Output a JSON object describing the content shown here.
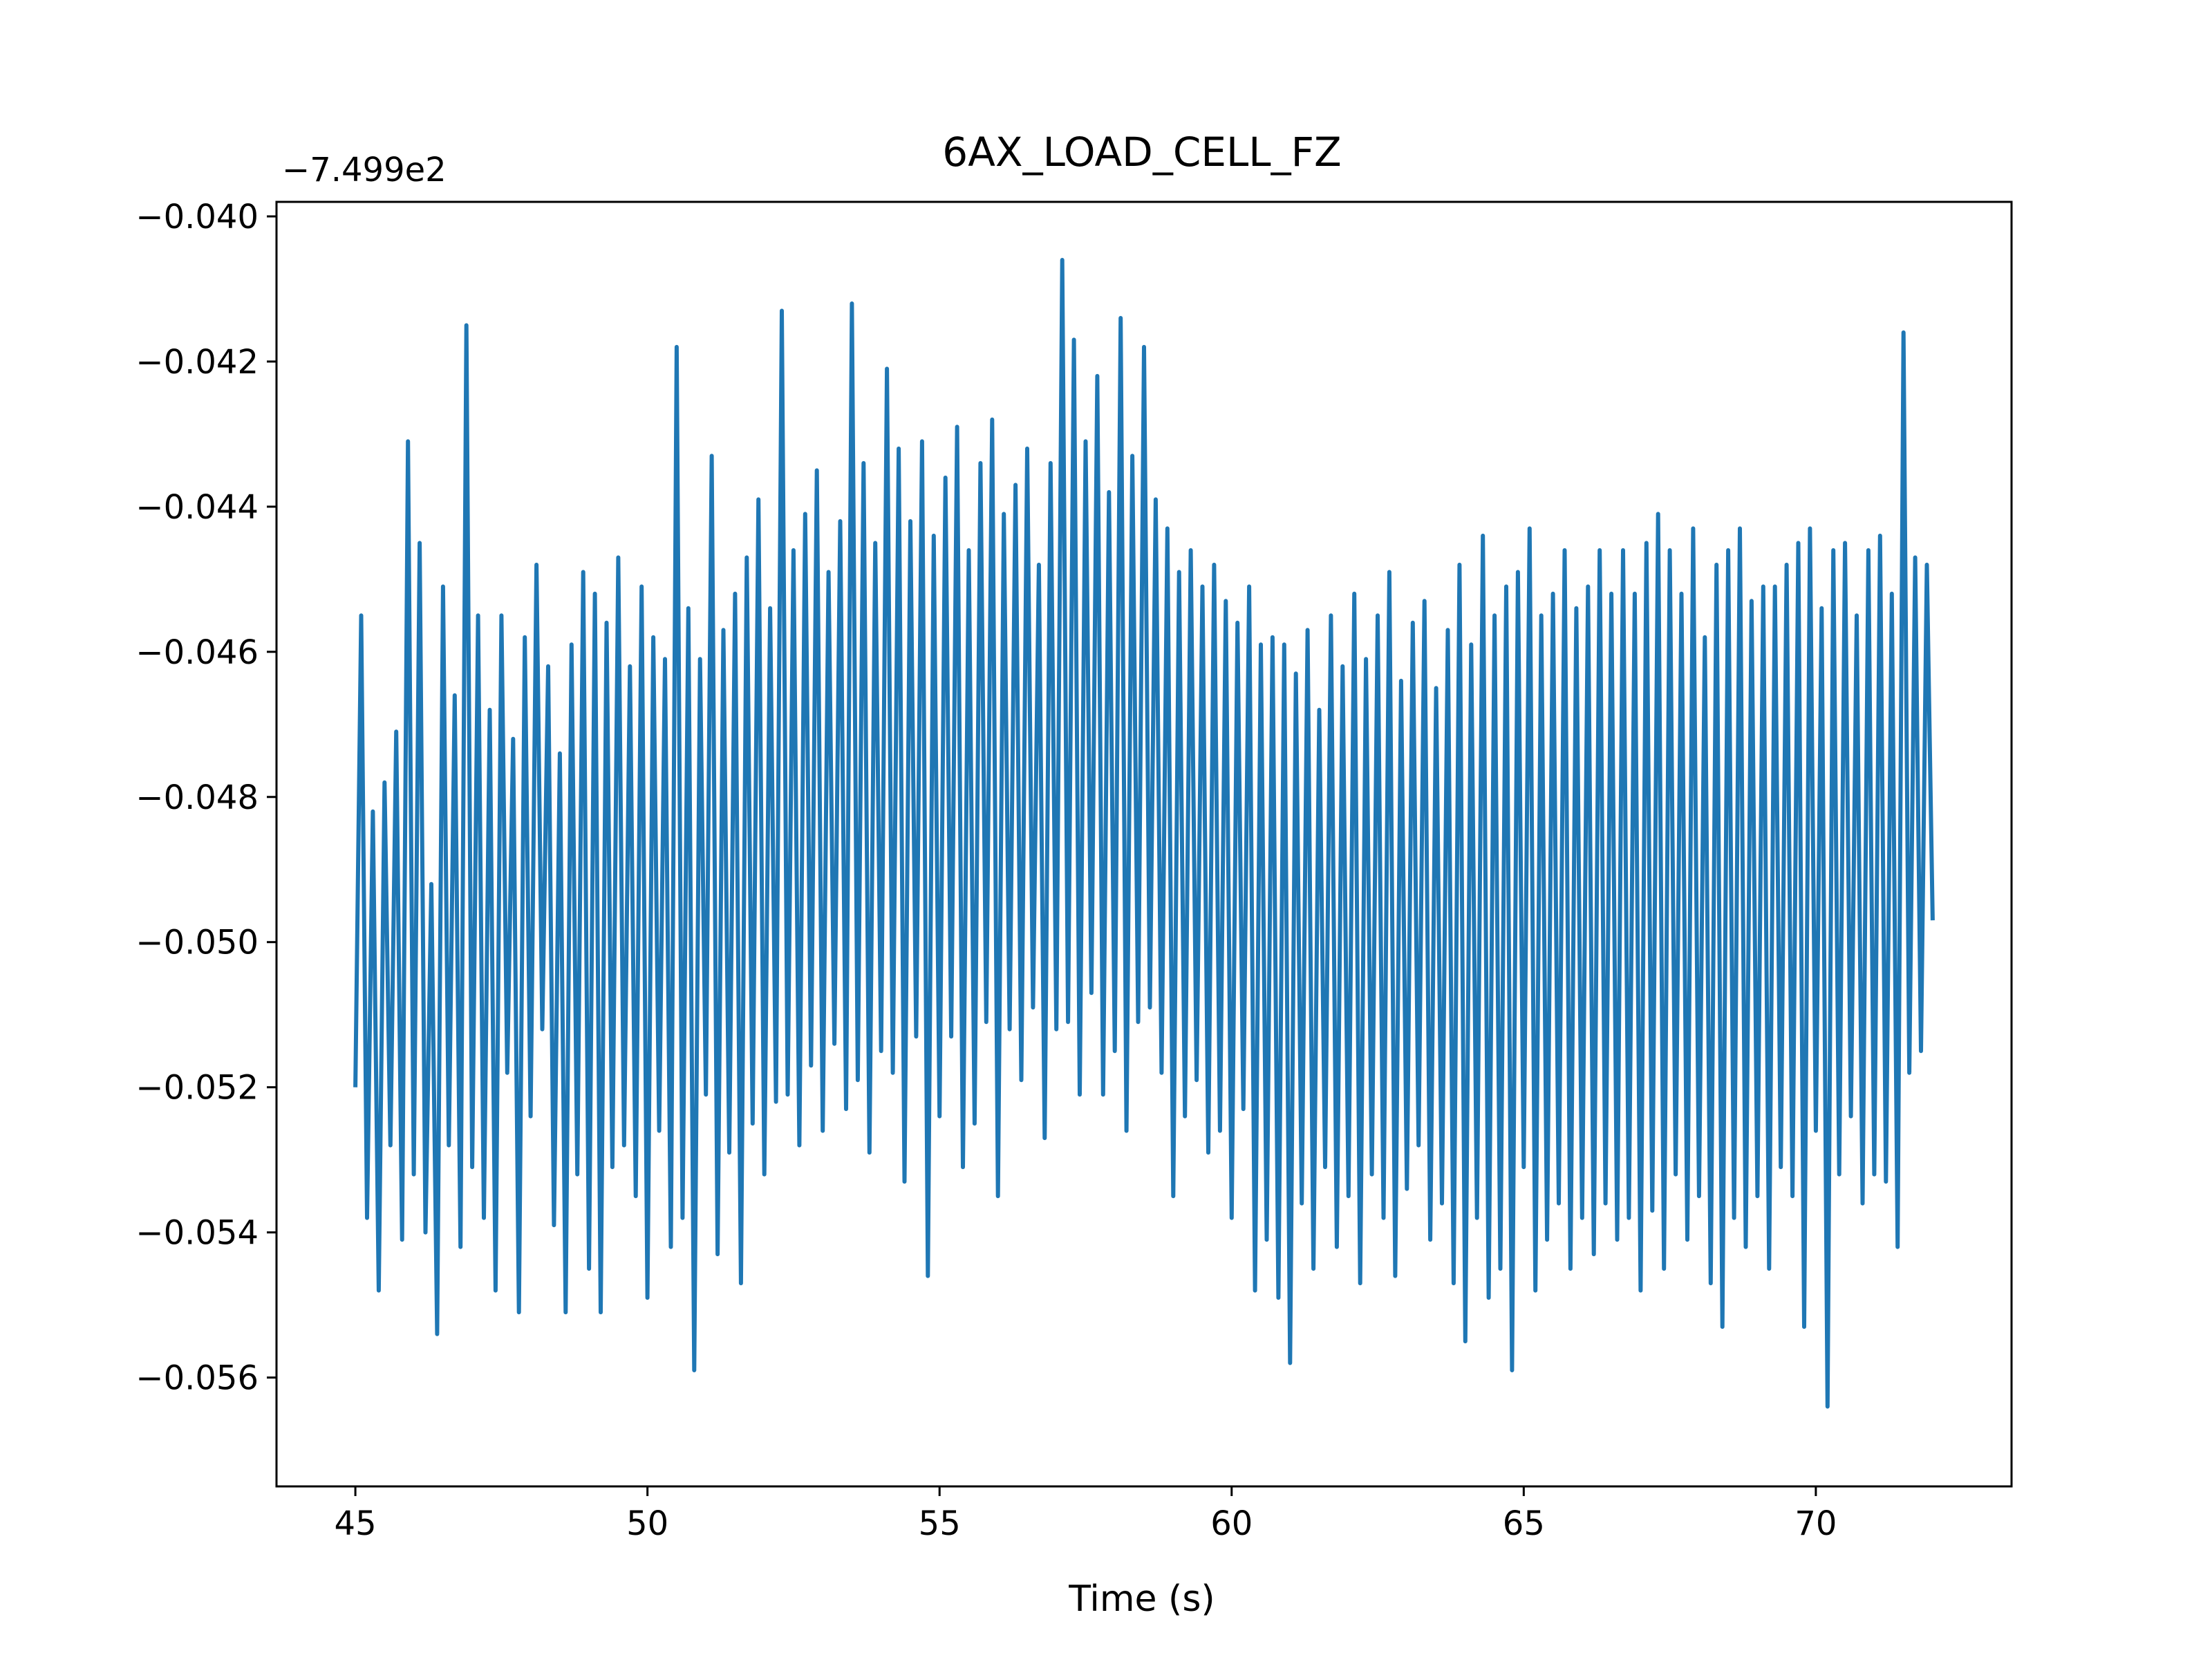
{
  "chart_data": {
    "type": "line",
    "title": "6AX_LOAD_CELL_FZ",
    "xlabel": "Time (s)",
    "ylabel": "",
    "y_offset_label": "−7.499e2",
    "xlim": [
      43.65,
      73.35
    ],
    "ylim": [
      -0.0575,
      -0.0398
    ],
    "x_ticks": [
      45,
      50,
      55,
      60,
      65,
      70
    ],
    "x_tick_labels": [
      "45",
      "50",
      "55",
      "60",
      "65",
      "70"
    ],
    "y_ticks": [
      -0.056,
      -0.054,
      -0.052,
      -0.05,
      -0.048,
      -0.046,
      -0.044,
      -0.042,
      -0.04
    ],
    "y_tick_labels": [
      "−0.056",
      "−0.054",
      "−0.052",
      "−0.050",
      "−0.048",
      "−0.046",
      "−0.044",
      "−0.042",
      "−0.040"
    ],
    "grid": false,
    "line_color": "#1f77b4",
    "series": [
      {
        "x": [
          45.0,
          45.1,
          45.2,
          45.3,
          45.4,
          45.5,
          45.6,
          45.7,
          45.8,
          45.9,
          46.0,
          46.1,
          46.2,
          46.3,
          46.4,
          46.5,
          46.6,
          46.7,
          46.8,
          46.9,
          47.0,
          47.1,
          47.2,
          47.3,
          47.4,
          47.5,
          47.6,
          47.7,
          47.8,
          47.9,
          48.0,
          48.1,
          48.2,
          48.3,
          48.4,
          48.5,
          48.6,
          48.7,
          48.8,
          48.9,
          49.0,
          49.1,
          49.2,
          49.3,
          49.4,
          49.5,
          49.6,
          49.7,
          49.8,
          49.9,
          50.0,
          50.1,
          50.2,
          50.3,
          50.4,
          50.5,
          50.6,
          50.7,
          50.8,
          50.9,
          51.0,
          51.1,
          51.2,
          51.3,
          51.4,
          51.5,
          51.6,
          51.7,
          51.8,
          51.9,
          52.0,
          52.1,
          52.2,
          52.3,
          52.4,
          52.5,
          52.6,
          52.7,
          52.8,
          52.9,
          53.0,
          53.1,
          53.2,
          53.3,
          53.4,
          53.5,
          53.6,
          53.7,
          53.8,
          53.9,
          54.0,
          54.1,
          54.2,
          54.3,
          54.4,
          54.5,
          54.6,
          54.7,
          54.8,
          54.9,
          55.0,
          55.1,
          55.2,
          55.3,
          55.4,
          55.5,
          55.6,
          55.7,
          55.8,
          55.9,
          56.0,
          56.1,
          56.2,
          56.3,
          56.4,
          56.5,
          56.6,
          56.7,
          56.8,
          56.9,
          57.0,
          57.1,
          57.2,
          57.3,
          57.4,
          57.5,
          57.6,
          57.7,
          57.8,
          57.9,
          58.0,
          58.1,
          58.2,
          58.3,
          58.4,
          58.5,
          58.6,
          58.7,
          58.8,
          58.9,
          59.0,
          59.1,
          59.2,
          59.3,
          59.4,
          59.5,
          59.6,
          59.7,
          59.8,
          59.9,
          60.0,
          60.1,
          60.2,
          60.3,
          60.4,
          60.5,
          60.6,
          60.7,
          60.8,
          60.9,
          61.0,
          61.1,
          61.2,
          61.3,
          61.4,
          61.5,
          61.6,
          61.7,
          61.8,
          61.9,
          62.0,
          62.1,
          62.2,
          62.3,
          62.4,
          62.5,
          62.6,
          62.7,
          62.8,
          62.9,
          63.0,
          63.1,
          63.2,
          63.3,
          63.4,
          63.5,
          63.6,
          63.7,
          63.8,
          63.9,
          64.0,
          64.1,
          64.2,
          64.3,
          64.4,
          64.5,
          64.6,
          64.7,
          64.8,
          64.9,
          65.0,
          65.1,
          65.2,
          65.3,
          65.4,
          65.5,
          65.6,
          65.7,
          65.8,
          65.9,
          66.0,
          66.1,
          66.2,
          66.3,
          66.4,
          66.5,
          66.6,
          66.7,
          66.8,
          66.9,
          67.0,
          67.1,
          67.2,
          67.3,
          67.4,
          67.5,
          67.6,
          67.7,
          67.8,
          67.9,
          68.0,
          68.1,
          68.2,
          68.3,
          68.4,
          68.5,
          68.6,
          68.7,
          68.8,
          68.9,
          69.0,
          69.1,
          69.2,
          69.3,
          69.4,
          69.5,
          69.6,
          69.7,
          69.8,
          69.9,
          70.0,
          70.1,
          70.2,
          70.3,
          70.4,
          70.5,
          70.6,
          70.7,
          70.8,
          70.9,
          71.0,
          71.1,
          71.2,
          71.3,
          71.4,
          71.5,
          71.6,
          71.7,
          71.8,
          71.9,
          72.0
        ],
        "y": [
          -0.052,
          -0.0455,
          -0.0538,
          -0.0482,
          -0.0548,
          -0.0478,
          -0.0528,
          -0.0471,
          -0.0541,
          -0.0431,
          -0.0532,
          -0.0445,
          -0.054,
          -0.0492,
          -0.0554,
          -0.0451,
          -0.0528,
          -0.0466,
          -0.0542,
          -0.0415,
          -0.0531,
          -0.0455,
          -0.0538,
          -0.0468,
          -0.0548,
          -0.0455,
          -0.0518,
          -0.0472,
          -0.0551,
          -0.0458,
          -0.0524,
          -0.0448,
          -0.0512,
          -0.0462,
          -0.0539,
          -0.0474,
          -0.0551,
          -0.0459,
          -0.0532,
          -0.0449,
          -0.0545,
          -0.0452,
          -0.0551,
          -0.0456,
          -0.0531,
          -0.0447,
          -0.0528,
          -0.0462,
          -0.0535,
          -0.0451,
          -0.0549,
          -0.0458,
          -0.0526,
          -0.0461,
          -0.0542,
          -0.0418,
          -0.0538,
          -0.0454,
          -0.0559,
          -0.0461,
          -0.0521,
          -0.0433,
          -0.0543,
          -0.0457,
          -0.0529,
          -0.0452,
          -0.0547,
          -0.0447,
          -0.0525,
          -0.0439,
          -0.0532,
          -0.0454,
          -0.0522,
          -0.0413,
          -0.0521,
          -0.0446,
          -0.0528,
          -0.0441,
          -0.0517,
          -0.0435,
          -0.0526,
          -0.0449,
          -0.0514,
          -0.0442,
          -0.0523,
          -0.0412,
          -0.0519,
          -0.0434,
          -0.0529,
          -0.0445,
          -0.0515,
          -0.0421,
          -0.0518,
          -0.0432,
          -0.0533,
          -0.0442,
          -0.0513,
          -0.0431,
          -0.0546,
          -0.0444,
          -0.0524,
          -0.0436,
          -0.0513,
          -0.0429,
          -0.0531,
          -0.0446,
          -0.0525,
          -0.0434,
          -0.0511,
          -0.0428,
          -0.0535,
          -0.0441,
          -0.0512,
          -0.0437,
          -0.0519,
          -0.0432,
          -0.0509,
          -0.0448,
          -0.0527,
          -0.0434,
          -0.0512,
          -0.0406,
          -0.0511,
          -0.0417,
          -0.0521,
          -0.0431,
          -0.0507,
          -0.0422,
          -0.0521,
          -0.0438,
          -0.0515,
          -0.0414,
          -0.0526,
          -0.0433,
          -0.0511,
          -0.0418,
          -0.0509,
          -0.0439,
          -0.0518,
          -0.0443,
          -0.0535,
          -0.0449,
          -0.0524,
          -0.0446,
          -0.0519,
          -0.0451,
          -0.0529,
          -0.0448,
          -0.0526,
          -0.0453,
          -0.0538,
          -0.0456,
          -0.0523,
          -0.0451,
          -0.0548,
          -0.0459,
          -0.0541,
          -0.0458,
          -0.0549,
          -0.0459,
          -0.0558,
          -0.0463,
          -0.0536,
          -0.0457,
          -0.0545,
          -0.0468,
          -0.0531,
          -0.0455,
          -0.0542,
          -0.0462,
          -0.0535,
          -0.0452,
          -0.0547,
          -0.0461,
          -0.0532,
          -0.0455,
          -0.0538,
          -0.0449,
          -0.0546,
          -0.0464,
          -0.0534,
          -0.0456,
          -0.0528,
          -0.0453,
          -0.0541,
          -0.0465,
          -0.0536,
          -0.0457,
          -0.0547,
          -0.0448,
          -0.0555,
          -0.0459,
          -0.0538,
          -0.0444,
          -0.0549,
          -0.0455,
          -0.0545,
          -0.0451,
          -0.0559,
          -0.0449,
          -0.0531,
          -0.0443,
          -0.0548,
          -0.0455,
          -0.0541,
          -0.0452,
          -0.0536,
          -0.0446,
          -0.0545,
          -0.0454,
          -0.0538,
          -0.0451,
          -0.0543,
          -0.0446,
          -0.0536,
          -0.0452,
          -0.0541,
          -0.0446,
          -0.0538,
          -0.0452,
          -0.0548,
          -0.0445,
          -0.0537,
          -0.0441,
          -0.0545,
          -0.0446,
          -0.0532,
          -0.0452,
          -0.0541,
          -0.0443,
          -0.0535,
          -0.0458,
          -0.0547,
          -0.0448,
          -0.0553,
          -0.0446,
          -0.0538,
          -0.0443,
          -0.0542,
          -0.0453,
          -0.0535,
          -0.0451,
          -0.0545,
          -0.0451,
          -0.0531,
          -0.0448,
          -0.0535,
          -0.0445,
          -0.0553,
          -0.0443,
          -0.0526,
          -0.0454,
          -0.0564,
          -0.0446,
          -0.0532,
          -0.0445,
          -0.0524,
          -0.0455,
          -0.0536,
          -0.0446,
          -0.0532,
          -0.0444,
          -0.0533,
          -0.0452,
          -0.0542,
          -0.0416,
          -0.0518,
          -0.0447,
          -0.0515,
          -0.0448,
          -0.0497
        ]
      }
    ]
  }
}
